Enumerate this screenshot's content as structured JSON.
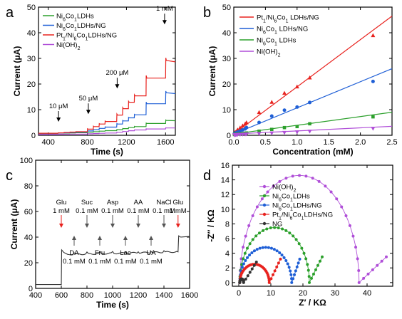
{
  "chart_data": [
    {
      "panel": "a",
      "type": "line",
      "xlabel": "Time (s)",
      "ylabel": "Current (μA)",
      "xlim": [
        300,
        1700
      ],
      "ylim": [
        0,
        50
      ],
      "xticks": [
        400,
        800,
        1200,
        1600
      ],
      "yticks": [
        0,
        10,
        20,
        30,
        40,
        50
      ],
      "legend": "top-left",
      "series": [
        {
          "name": "Ni6Co1LDHs",
          "label": "Ni<sub>6</sub>Co<sub>1</sub>LDHs",
          "color": "#2ca02c",
          "base": 0.8,
          "step_sizes": [
            0.05,
            0.05,
            0.05,
            0.05,
            0.2,
            0.2,
            0.2,
            0.2,
            0.4,
            0.4,
            0.4,
            0.4,
            1.2,
            1.2
          ]
        },
        {
          "name": "Ni6Co1LDHs/NG",
          "label": "Ni<sub>6</sub>Co<sub>1</sub>LDHs/NG",
          "color": "#1f5fd6",
          "base": 0.8,
          "step_sizes": [
            0.1,
            0.1,
            0.1,
            0.1,
            0.5,
            0.5,
            0.5,
            0.5,
            1.2,
            1.2,
            1.2,
            1.2,
            4.3,
            4.3
          ]
        },
        {
          "name": "Pt1/Ni6Co1LDHs/NG",
          "label": "Pt<sub>1</sub>/Ni<sub>6</sub>Co<sub>1</sub>LDHs/NG",
          "color": "#e8221e",
          "base": 0.8,
          "step_sizes": [
            0.15,
            0.15,
            0.15,
            0.15,
            1.0,
            1.0,
            1.0,
            1.0,
            2.5,
            2.5,
            2.5,
            2.5,
            6.9,
            6.9
          ]
        },
        {
          "name": "Ni(OH)2",
          "label": "Ni(OH)<sub>2</sub>",
          "color": "#b04fd8",
          "base": 0.4,
          "step_sizes": [
            0.02,
            0.02,
            0.02,
            0.02,
            0.1,
            0.1,
            0.1,
            0.1,
            0.3,
            0.3,
            0.3,
            0.3,
            0.4,
            0.4
          ]
        }
      ],
      "step_times": [
        500,
        560,
        620,
        680,
        800,
        860,
        920,
        980,
        1100,
        1160,
        1220,
        1280,
        1400,
        1600
      ],
      "annotations": [
        {
          "text": "10 μM",
          "x": 505,
          "y": 5
        },
        {
          "text": "50 μM",
          "x": 810,
          "y": 8
        },
        {
          "text": "200 μM",
          "x": 1105,
          "y": 18
        },
        {
          "text": "1 mM",
          "x": 1590,
          "y": 43
        }
      ]
    },
    {
      "panel": "b",
      "type": "scatter",
      "xlabel": "Concentration (mM)",
      "ylabel": "Current (μA)",
      "xlim": [
        0,
        2.5
      ],
      "ylim": [
        0,
        50
      ],
      "xticks": [
        0.0,
        0.5,
        1.0,
        1.5,
        2.0,
        2.5
      ],
      "yticks": [
        0,
        10,
        20,
        30,
        40,
        50
      ],
      "legend": "top-left",
      "series": [
        {
          "name": "Pt1/Ni6Co1LDHs/NG",
          "label": "Pt<sub>1</sub>/Ni<sub>6</sub>Co<sub>1</sub> LDHs/NG",
          "color": "#e8221e",
          "marker": "triangle",
          "slope": 18.4,
          "x": [
            0.01,
            0.02,
            0.03,
            0.04,
            0.06,
            0.1,
            0.14,
            0.18,
            0.2,
            0.4,
            0.6,
            0.8,
            1.0,
            1.2,
            2.2
          ],
          "y": [
            0.9,
            1.1,
            1.3,
            1.5,
            2.2,
            3.0,
            3.8,
            4.5,
            5.0,
            9.0,
            13.0,
            16.5,
            19.0,
            22.5,
            39.0
          ]
        },
        {
          "name": "Ni6Co1LDHs/NG",
          "label": "Ni<sub>6</sub>Co<sub>1</sub> LDHs/NG",
          "color": "#1f5fd6",
          "marker": "circle",
          "slope": 10.2,
          "x": [
            0.01,
            0.02,
            0.03,
            0.04,
            0.06,
            0.1,
            0.14,
            0.18,
            0.2,
            0.4,
            0.6,
            0.8,
            1.0,
            1.2,
            2.2
          ],
          "y": [
            0.7,
            0.8,
            0.9,
            1.0,
            1.3,
            1.7,
            2.1,
            2.5,
            3.0,
            5.0,
            7.5,
            9.8,
            11.0,
            12.8,
            21.0
          ]
        },
        {
          "name": "Ni6Co1LDHs",
          "label": "Ni<sub>6</sub>Co<sub>1</sub> LDHs",
          "color": "#2ca02c",
          "marker": "square",
          "slope": 3.4,
          "x": [
            0.01,
            0.02,
            0.03,
            0.04,
            0.06,
            0.1,
            0.14,
            0.18,
            0.2,
            0.4,
            0.6,
            0.8,
            1.0,
            1.2,
            2.2
          ],
          "y": [
            0.3,
            0.35,
            0.4,
            0.45,
            0.5,
            0.6,
            0.7,
            0.8,
            0.9,
            1.6,
            2.3,
            3.0,
            3.4,
            4.5,
            7.2
          ]
        },
        {
          "name": "Ni(OH)2",
          "label": "Ni(OH)<sub>2</sub>",
          "color": "#b04fd8",
          "marker": "triangle-down",
          "slope": 1.2,
          "x": [
            0.01,
            0.02,
            0.03,
            0.04,
            0.06,
            0.1,
            0.14,
            0.18,
            0.2,
            0.4,
            0.6,
            0.8,
            1.0,
            1.2,
            2.2
          ],
          "y": [
            0.1,
            0.12,
            0.15,
            0.18,
            0.2,
            0.25,
            0.3,
            0.35,
            0.4,
            0.6,
            0.8,
            1.0,
            1.2,
            1.5,
            2.6
          ]
        }
      ]
    },
    {
      "panel": "c",
      "type": "line",
      "xlabel": "Time (s)",
      "ylabel": "Current (μA)",
      "xlim": [
        400,
        1600
      ],
      "ylim": [
        0,
        100
      ],
      "xticks": [
        400,
        600,
        800,
        1000,
        1200,
        1400,
        1600
      ],
      "yticks": [
        0,
        20,
        40,
        60,
        80,
        100
      ],
      "color": "#333333",
      "x": [
        400,
        600,
        605,
        640,
        1200,
        1510,
        1520,
        1600
      ],
      "y": [
        3,
        3,
        29,
        26,
        28,
        28,
        40,
        41
      ],
      "annotations_top": [
        {
          "text1": "Glu",
          "text2": "1 mM",
          "x": 600,
          "color": "#e8221e"
        },
        {
          "text1": "Suc",
          "text2": "0.1 mM",
          "x": 800,
          "color": "#555555"
        },
        {
          "text1": "Asp",
          "text2": "0.1 mM",
          "x": 1000,
          "color": "#555555"
        },
        {
          "text1": "AA",
          "text2": "0.1 mM",
          "x": 1200,
          "color": "#555555"
        },
        {
          "text1": "NaCl",
          "text2": "0.1 mM",
          "x": 1400,
          "color": "#555555"
        },
        {
          "text1": "Glu",
          "text2": "1 mM",
          "x": 1510,
          "color": "#e8221e"
        }
      ],
      "annotations_bottom": [
        {
          "text1": "DA",
          "text2": "0.1 mM",
          "x": 700
        },
        {
          "text1": "Fru",
          "text2": "0.1 mM",
          "x": 900
        },
        {
          "text1": "Lac",
          "text2": "0.1 mM",
          "x": 1100
        },
        {
          "text1": "UA",
          "text2": "0.1 mM",
          "x": 1300
        }
      ]
    },
    {
      "panel": "d",
      "type": "scatter",
      "xlabel": "Z′ / KΩ",
      "ylabel": "-Z″ / KΩ",
      "xlim": [
        -2,
        48
      ],
      "ylim": [
        -0.5,
        16
      ],
      "xticks": [
        0,
        10,
        20,
        30,
        40
      ],
      "yticks": [
        0,
        2,
        4,
        6,
        8,
        10,
        12,
        14,
        16
      ],
      "legend": "top-left",
      "series": [
        {
          "name": "Ni(OH)2",
          "label": "Ni(OH)<sub>2</sub>",
          "color": "#b04fd8",
          "arc_start": 0.3,
          "arc_end": 37.5,
          "arc_height": 14.6,
          "tail_end_x": 46,
          "tail_end_y": 3.5
        },
        {
          "name": "Ni6Co1LDHs",
          "label": "Ni<sub>6</sub>Co<sub>1</sub>LDHs",
          "color": "#2ca02c",
          "arc_start": 0.3,
          "arc_end": 22,
          "arc_height": 7.5,
          "tail_end_x": 26,
          "tail_end_y": 3.5
        },
        {
          "name": "Ni6Co1LDHs/NG",
          "label": "Ni<sub>6</sub>Co<sub>1</sub>LDHs/NG",
          "color": "#1f5fd6",
          "arc_start": 0.3,
          "arc_end": 16.5,
          "arc_height": 4.8,
          "tail_end_x": 19,
          "tail_end_y": 3.2
        },
        {
          "name": "Pt1/Ni6Co1LDHs/NG",
          "label": "Pt<sub>1</sub>/Ni<sub>6</sub>Co<sub>1</sub>LDHs/NG",
          "color": "#e8221e",
          "arc_start": 0.3,
          "arc_end": 9.5,
          "arc_height": 2.5,
          "tail_end_x": 13,
          "tail_end_y": 3.2
        },
        {
          "name": "NG",
          "label": "NG",
          "color": "#333333",
          "arc_start": 0.3,
          "arc_end": 1.5,
          "arc_height": 0.5,
          "tail_end_x": 5.5,
          "tail_end_y": 2.8
        }
      ]
    }
  ]
}
